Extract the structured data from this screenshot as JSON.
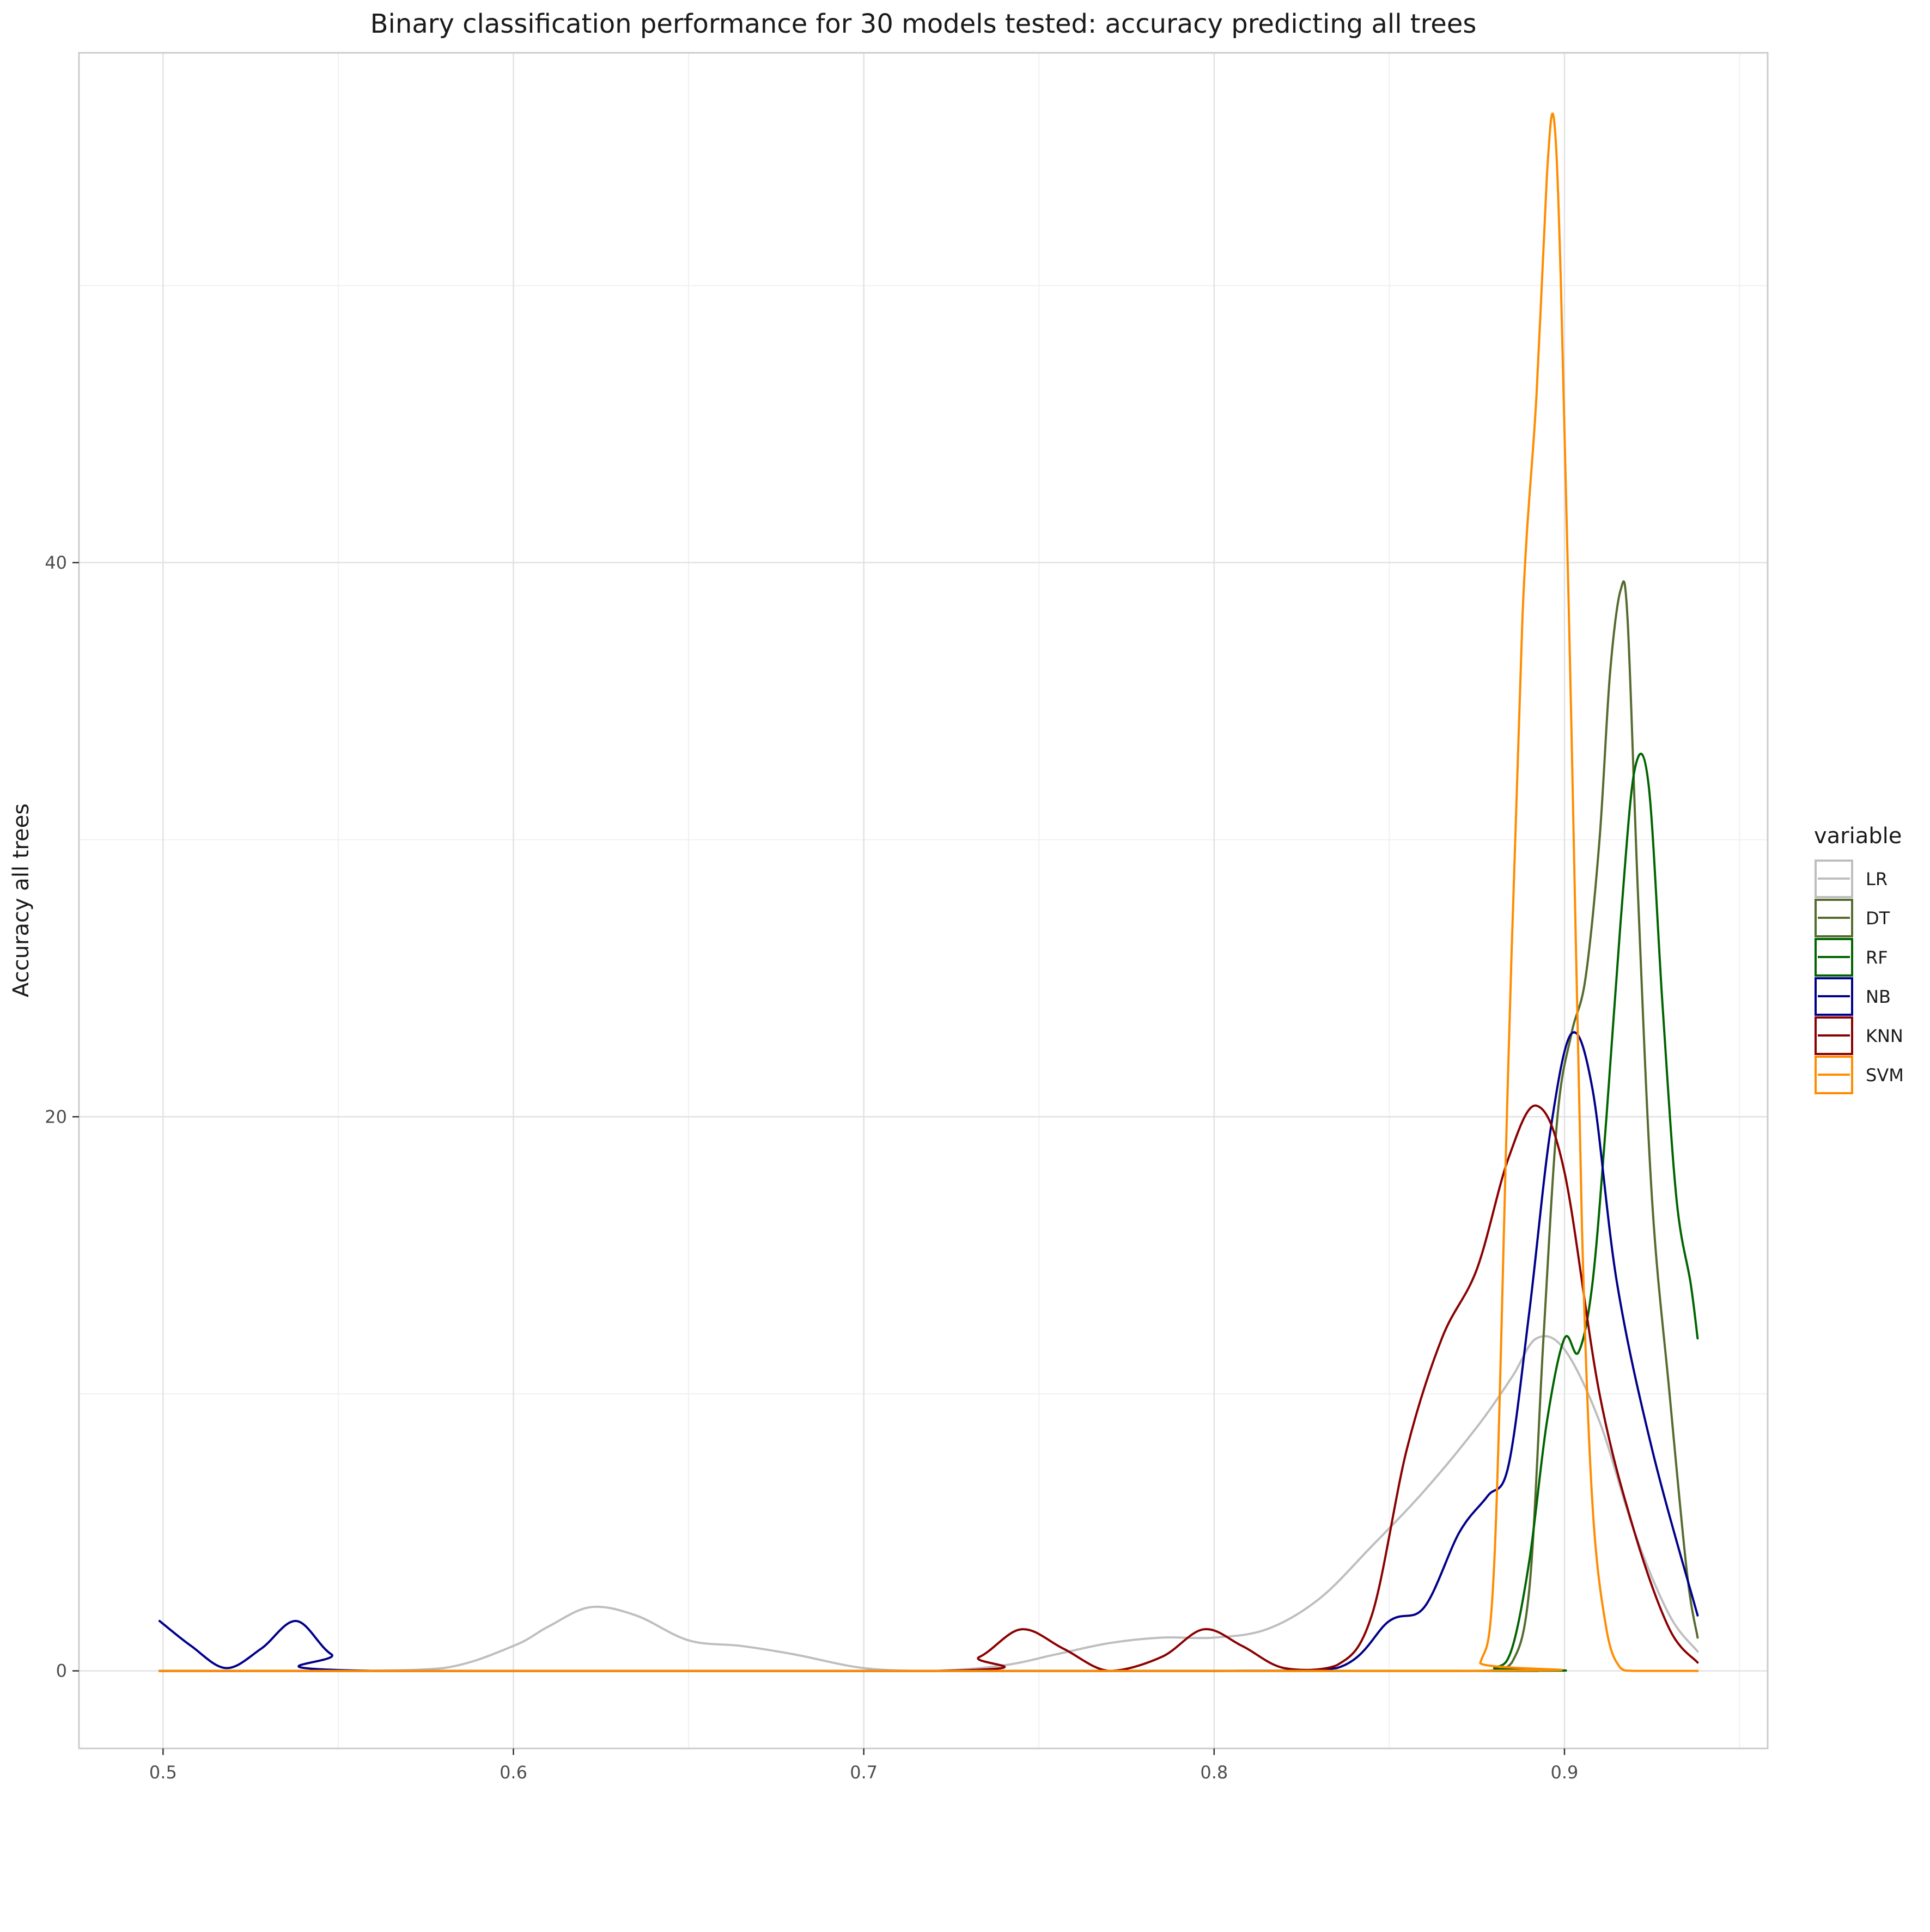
{
  "chart_data": {
    "type": "line",
    "title": "Binary classification performance for 30 models tested: accuracy predicting all trees",
    "xlabel": "",
    "ylabel": "Accuracy all trees",
    "xlim": [
      0.476,
      0.958
    ],
    "ylim": [
      -2.8,
      58.4
    ],
    "x_ticks": [
      0.5,
      0.6,
      0.7,
      0.8,
      0.9
    ],
    "x_tick_labels": [
      "0.5",
      "0.6",
      "0.7",
      "0.8",
      "0.9"
    ],
    "x_minor_ticks": [
      0.55,
      0.65,
      0.75,
      0.85,
      0.95
    ],
    "y_ticks": [
      0,
      20,
      40
    ],
    "y_tick_labels": [
      "0",
      "20",
      "40"
    ],
    "y_minor_ticks": [
      10,
      30,
      50
    ],
    "grid": true,
    "legend": {
      "title": "variable",
      "position": "right"
    },
    "series": [
      {
        "name": "LR",
        "color": "#BEBEBE",
        "x": [
          0.499,
          0.55,
          0.58,
          0.6,
          0.61,
          0.622,
          0.635,
          0.65,
          0.665,
          0.68,
          0.7,
          0.72,
          0.74,
          0.755,
          0.77,
          0.785,
          0.8,
          0.815,
          0.83,
          0.845,
          0.86,
          0.875,
          0.885,
          0.892,
          0.9,
          0.91,
          0.92,
          0.93,
          0.938
        ],
        "y": [
          0,
          0,
          0.1,
          0.9,
          1.6,
          2.3,
          2.0,
          1.1,
          0.9,
          0.6,
          0.1,
          0,
          0.2,
          0.6,
          1.0,
          1.2,
          1.2,
          1.5,
          2.6,
          4.5,
          6.5,
          8.8,
          10.6,
          12.0,
          11.6,
          9.0,
          5.0,
          2.0,
          0.7
        ]
      },
      {
        "name": "DT",
        "color": "#556B2F",
        "x": [
          0.499,
          0.86,
          0.878,
          0.885,
          0.89,
          0.894,
          0.898,
          0.902,
          0.906,
          0.91,
          0.913,
          0.916,
          0.918,
          0.921,
          0.925,
          0.93,
          0.935,
          0.938
        ],
        "y": [
          0,
          0,
          0,
          0.3,
          3.0,
          12.0,
          20.0,
          23.0,
          25.0,
          30.0,
          36.0,
          39.0,
          38.0,
          28.0,
          17.0,
          10.0,
          3.5,
          1.2
        ]
      },
      {
        "name": "RF",
        "color": "#006400",
        "x": [
          0.499,
          0.87,
          0.88,
          0.885,
          0.89,
          0.895,
          0.9,
          0.904,
          0.908,
          0.912,
          0.916,
          0.92,
          0.924,
          0.928,
          0.932,
          0.936,
          0.938
        ],
        "y": [
          0,
          0,
          0.1,
          0.8,
          4.0,
          9.0,
          12.0,
          11.5,
          14.0,
          20.0,
          27.0,
          32.5,
          32.0,
          24.0,
          17.0,
          14.0,
          12.0
        ]
      },
      {
        "name": "NB",
        "color": "#00008B",
        "x": [
          0.499,
          0.508,
          0.518,
          0.528,
          0.538,
          0.548,
          0.56,
          0.8,
          0.835,
          0.85,
          0.86,
          0.87,
          0.878,
          0.884,
          0.89,
          0.896,
          0.902,
          0.908,
          0.915,
          0.925,
          0.938
        ],
        "y": [
          1.8,
          0.9,
          0.1,
          0.8,
          1.8,
          0.6,
          0,
          0,
          0.1,
          1.8,
          2.3,
          5.0,
          6.3,
          7.4,
          13.0,
          19.5,
          23.0,
          21.0,
          14.0,
          8.0,
          2.0
        ]
      },
      {
        "name": "KNN",
        "color": "#8B0000",
        "x": [
          0.499,
          0.72,
          0.733,
          0.745,
          0.757,
          0.77,
          0.785,
          0.797,
          0.808,
          0.82,
          0.835,
          0.845,
          0.855,
          0.865,
          0.875,
          0.884,
          0.892,
          0.9,
          0.91,
          0.92,
          0.93,
          0.938
        ],
        "y": [
          0,
          0,
          0.5,
          1.5,
          0.8,
          0,
          0.5,
          1.5,
          0.9,
          0.1,
          0.2,
          2.0,
          8.0,
          12.0,
          14.5,
          18.5,
          20.4,
          18.0,
          10.0,
          5.0,
          1.5,
          0.3
        ]
      },
      {
        "name": "SVM",
        "color": "#FF8C00",
        "x": [
          0.499,
          0.87,
          0.876,
          0.88,
          0.884,
          0.888,
          0.892,
          0.895,
          0.897,
          0.899,
          0.902,
          0.905,
          0.908,
          0.912,
          0.916,
          0.92,
          0.938
        ],
        "y": [
          0,
          0,
          0.3,
          4.0,
          22.0,
          38.0,
          46.0,
          54.0,
          56.0,
          50.0,
          34.0,
          16.0,
          6.0,
          1.5,
          0.1,
          0,
          0
        ]
      }
    ]
  }
}
